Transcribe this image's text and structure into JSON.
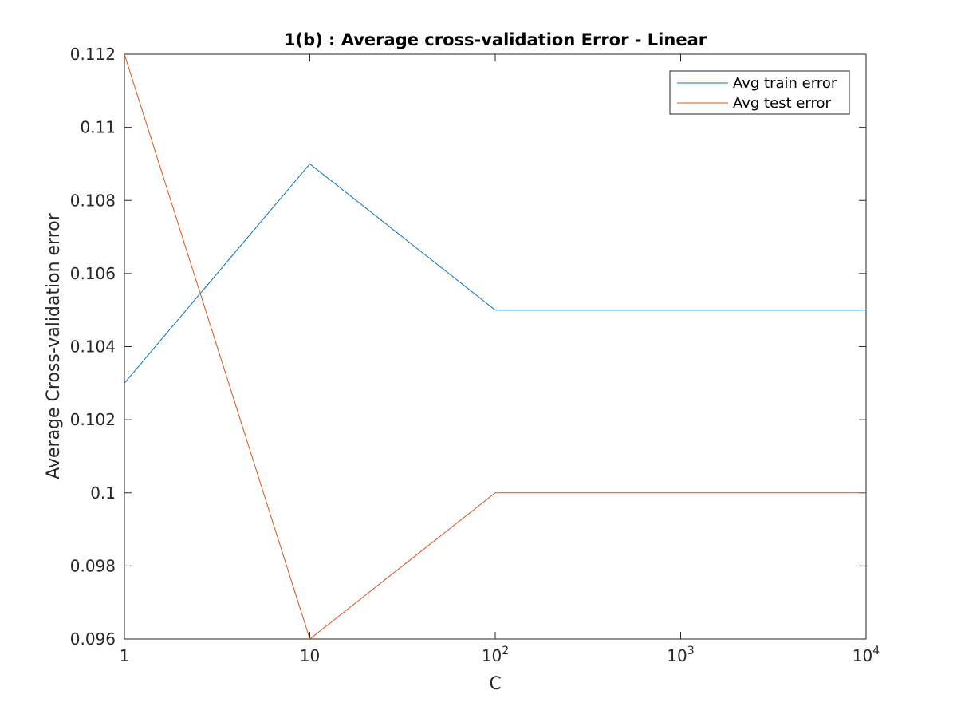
{
  "chart_data": {
    "type": "line",
    "title": "1(b) : Average cross-validation Error - Linear",
    "xlabel": "C",
    "ylabel": "Average Cross-validation error",
    "x_scale": "log",
    "xlim": [
      1,
      10000
    ],
    "ylim": [
      0.096,
      0.112
    ],
    "x": [
      1,
      10,
      100,
      1000,
      10000
    ],
    "x_ticks": [
      {
        "value": 1,
        "base": "1",
        "exp": ""
      },
      {
        "value": 10,
        "base": "10",
        "exp": ""
      },
      {
        "value": 100,
        "base": "10",
        "exp": "2"
      },
      {
        "value": 1000,
        "base": "10",
        "exp": "3"
      },
      {
        "value": 10000,
        "base": "10",
        "exp": "4"
      }
    ],
    "y_ticks": [
      {
        "value": 0.096,
        "label": "0.096"
      },
      {
        "value": 0.098,
        "label": "0.098"
      },
      {
        "value": 0.1,
        "label": "0.1"
      },
      {
        "value": 0.102,
        "label": "0.102"
      },
      {
        "value": 0.104,
        "label": "0.104"
      },
      {
        "value": 0.106,
        "label": "0.106"
      },
      {
        "value": 0.108,
        "label": "0.108"
      },
      {
        "value": 0.11,
        "label": "0.11"
      },
      {
        "value": 0.112,
        "label": "0.112"
      }
    ],
    "grid": false,
    "legend_position": "top-right",
    "series": [
      {
        "name": "Avg train error",
        "color": "#0072BD",
        "values": [
          0.103,
          0.109,
          0.105,
          0.105,
          0.105
        ]
      },
      {
        "name": "Avg test error",
        "color": "#D95319",
        "values": [
          0.112,
          0.096,
          0.1,
          0.1,
          0.1
        ]
      }
    ]
  }
}
